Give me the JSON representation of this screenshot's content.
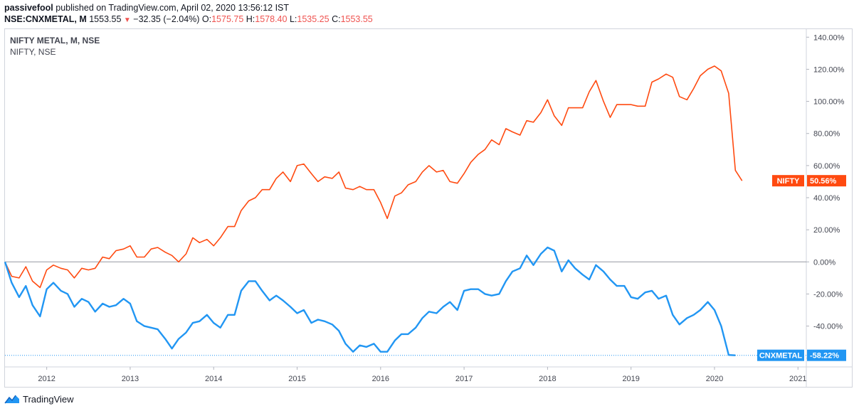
{
  "header": {
    "author": "passivefool",
    "published_text": "published on TradingView.com, April 02, 2020 13:56:12 IST",
    "symbol": "NSE:CNXMETAL, M",
    "last": "1553.55",
    "change": "−32.35 (−2.04%)",
    "o_label": "O:",
    "o_val": "1575.75",
    "h_label": "H:",
    "h_val": "1578.40",
    "l_label": "L:",
    "l_val": "1535.25",
    "c_label": "C:",
    "c_val": "1553.55"
  },
  "legend": {
    "main": "NIFTY METAL, M, NSE",
    "compare": "NIFTY, NSE"
  },
  "brand": "TradingView",
  "chart_data": {
    "type": "line",
    "y_unit": "%",
    "ylim": [
      -65,
      145
    ],
    "y_ticks": [
      "140.00%",
      "120.00%",
      "100.00%",
      "80.00%",
      "60.00%",
      "40.00%",
      "20.00%",
      "0.00%",
      "-20.00%",
      "-40.00%",
      "-60.00%"
    ],
    "y_tick_values": [
      140,
      120,
      100,
      80,
      60,
      40,
      20,
      0,
      -20,
      -40,
      -60
    ],
    "x_ticks": [
      "2012",
      "2013",
      "2014",
      "2015",
      "2016",
      "2017",
      "2018",
      "2019",
      "2020",
      "2021"
    ],
    "x_tick_values": [
      2012,
      2013,
      2014,
      2015,
      2016,
      2017,
      2018,
      2019,
      2020,
      2021
    ],
    "xlim": [
      2011.5,
      2021.1
    ],
    "colors": {
      "nifty": "#ff4a10",
      "metal": "#2196f3"
    },
    "series": [
      {
        "name": "NIFTY",
        "last_label": "NIFTY",
        "last_value_text": "50.56%",
        "points": [
          [
            2011.5,
            0
          ],
          [
            2011.58,
            -9
          ],
          [
            2011.67,
            -10
          ],
          [
            2011.75,
            -3
          ],
          [
            2011.83,
            -12
          ],
          [
            2011.92,
            -16
          ],
          [
            2012.0,
            -5
          ],
          [
            2012.08,
            -2
          ],
          [
            2012.17,
            -4
          ],
          [
            2012.25,
            -5
          ],
          [
            2012.33,
            -10
          ],
          [
            2012.42,
            -4
          ],
          [
            2012.5,
            -5
          ],
          [
            2012.58,
            -4
          ],
          [
            2012.67,
            3
          ],
          [
            2012.75,
            2
          ],
          [
            2012.83,
            7
          ],
          [
            2012.92,
            8
          ],
          [
            2013.0,
            10
          ],
          [
            2013.08,
            3
          ],
          [
            2013.17,
            3
          ],
          [
            2013.25,
            8
          ],
          [
            2013.33,
            9
          ],
          [
            2013.42,
            6
          ],
          [
            2013.5,
            4
          ],
          [
            2013.58,
            0
          ],
          [
            2013.67,
            5
          ],
          [
            2013.75,
            15
          ],
          [
            2013.83,
            12
          ],
          [
            2013.92,
            14
          ],
          [
            2014.0,
            10
          ],
          [
            2014.08,
            15
          ],
          [
            2014.17,
            22
          ],
          [
            2014.25,
            22
          ],
          [
            2014.33,
            32
          ],
          [
            2014.42,
            38
          ],
          [
            2014.5,
            40
          ],
          [
            2014.58,
            45
          ],
          [
            2014.67,
            45
          ],
          [
            2014.75,
            52
          ],
          [
            2014.83,
            56
          ],
          [
            2014.92,
            50
          ],
          [
            2015.0,
            60
          ],
          [
            2015.08,
            61
          ],
          [
            2015.17,
            55
          ],
          [
            2015.25,
            50
          ],
          [
            2015.33,
            53
          ],
          [
            2015.42,
            52
          ],
          [
            2015.5,
            56
          ],
          [
            2015.58,
            46
          ],
          [
            2015.67,
            45
          ],
          [
            2015.75,
            47
          ],
          [
            2015.83,
            45
          ],
          [
            2015.92,
            45
          ],
          [
            2016.0,
            37
          ],
          [
            2016.08,
            27
          ],
          [
            2016.17,
            41
          ],
          [
            2016.25,
            43
          ],
          [
            2016.33,
            48
          ],
          [
            2016.42,
            50
          ],
          [
            2016.5,
            56
          ],
          [
            2016.58,
            60
          ],
          [
            2016.67,
            56
          ],
          [
            2016.75,
            57
          ],
          [
            2016.83,
            50
          ],
          [
            2016.92,
            49
          ],
          [
            2017.0,
            55
          ],
          [
            2017.08,
            62
          ],
          [
            2017.17,
            67
          ],
          [
            2017.25,
            70
          ],
          [
            2017.33,
            76
          ],
          [
            2017.42,
            73
          ],
          [
            2017.5,
            83
          ],
          [
            2017.58,
            81
          ],
          [
            2017.67,
            79
          ],
          [
            2017.75,
            88
          ],
          [
            2017.83,
            87
          ],
          [
            2017.92,
            93
          ],
          [
            2018.0,
            101
          ],
          [
            2018.08,
            91
          ],
          [
            2018.17,
            85
          ],
          [
            2018.25,
            96
          ],
          [
            2018.33,
            96
          ],
          [
            2018.42,
            96
          ],
          [
            2018.5,
            106
          ],
          [
            2018.58,
            113
          ],
          [
            2018.67,
            100
          ],
          [
            2018.75,
            90
          ],
          [
            2018.83,
            98
          ],
          [
            2018.92,
            98
          ],
          [
            2019.0,
            98
          ],
          [
            2019.08,
            97
          ],
          [
            2019.17,
            97
          ],
          [
            2019.25,
            112
          ],
          [
            2019.33,
            114
          ],
          [
            2019.42,
            117
          ],
          [
            2019.5,
            115
          ],
          [
            2019.58,
            103
          ],
          [
            2019.67,
            101
          ],
          [
            2019.75,
            108
          ],
          [
            2019.83,
            116
          ],
          [
            2019.92,
            120
          ],
          [
            2020.0,
            122
          ],
          [
            2020.08,
            119
          ],
          [
            2020.17,
            105
          ],
          [
            2020.25,
            57
          ],
          [
            2020.33,
            50.56
          ]
        ]
      },
      {
        "name": "CNXMETAL",
        "last_label": "CNXMETAL",
        "last_value_text": "-58.22%",
        "points": [
          [
            2011.5,
            0
          ],
          [
            2011.58,
            -13
          ],
          [
            2011.67,
            -22
          ],
          [
            2011.75,
            -15
          ],
          [
            2011.83,
            -27
          ],
          [
            2011.92,
            -34
          ],
          [
            2012.0,
            -17
          ],
          [
            2012.08,
            -13
          ],
          [
            2012.17,
            -18
          ],
          [
            2012.25,
            -20
          ],
          [
            2012.33,
            -28
          ],
          [
            2012.42,
            -23
          ],
          [
            2012.5,
            -25
          ],
          [
            2012.58,
            -31
          ],
          [
            2012.67,
            -26
          ],
          [
            2012.75,
            -28
          ],
          [
            2012.83,
            -27
          ],
          [
            2012.92,
            -23
          ],
          [
            2013.0,
            -26
          ],
          [
            2013.08,
            -37
          ],
          [
            2013.17,
            -40
          ],
          [
            2013.25,
            -41
          ],
          [
            2013.33,
            -42
          ],
          [
            2013.42,
            -48
          ],
          [
            2013.5,
            -54
          ],
          [
            2013.58,
            -48
          ],
          [
            2013.67,
            -44
          ],
          [
            2013.75,
            -38
          ],
          [
            2013.83,
            -37
          ],
          [
            2013.92,
            -33
          ],
          [
            2014.0,
            -38
          ],
          [
            2014.08,
            -41
          ],
          [
            2014.17,
            -33
          ],
          [
            2014.25,
            -33
          ],
          [
            2014.33,
            -18
          ],
          [
            2014.42,
            -12
          ],
          [
            2014.5,
            -12
          ],
          [
            2014.58,
            -18
          ],
          [
            2014.67,
            -24
          ],
          [
            2014.75,
            -21
          ],
          [
            2014.83,
            -24
          ],
          [
            2014.92,
            -28
          ],
          [
            2015.0,
            -32
          ],
          [
            2015.08,
            -30
          ],
          [
            2015.17,
            -38
          ],
          [
            2015.25,
            -36
          ],
          [
            2015.33,
            -37
          ],
          [
            2015.42,
            -39
          ],
          [
            2015.5,
            -43
          ],
          [
            2015.58,
            -51
          ],
          [
            2015.67,
            -56
          ],
          [
            2015.75,
            -52
          ],
          [
            2015.83,
            -53
          ],
          [
            2015.92,
            -51
          ],
          [
            2016.0,
            -56
          ],
          [
            2016.08,
            -56
          ],
          [
            2016.17,
            -49
          ],
          [
            2016.25,
            -45
          ],
          [
            2016.33,
            -45
          ],
          [
            2016.42,
            -41
          ],
          [
            2016.5,
            -35
          ],
          [
            2016.58,
            -31
          ],
          [
            2016.67,
            -32
          ],
          [
            2016.75,
            -28
          ],
          [
            2016.83,
            -25
          ],
          [
            2016.92,
            -30
          ],
          [
            2017.0,
            -18
          ],
          [
            2017.08,
            -17
          ],
          [
            2017.17,
            -17
          ],
          [
            2017.25,
            -20
          ],
          [
            2017.33,
            -21
          ],
          [
            2017.42,
            -20
          ],
          [
            2017.5,
            -12
          ],
          [
            2017.58,
            -6
          ],
          [
            2017.67,
            -4
          ],
          [
            2017.75,
            4
          ],
          [
            2017.83,
            -2
          ],
          [
            2017.92,
            5
          ],
          [
            2018.0,
            9
          ],
          [
            2018.08,
            7
          ],
          [
            2018.17,
            -6
          ],
          [
            2018.25,
            1
          ],
          [
            2018.33,
            -4
          ],
          [
            2018.42,
            -8
          ],
          [
            2018.5,
            -11
          ],
          [
            2018.58,
            -2
          ],
          [
            2018.67,
            -6
          ],
          [
            2018.75,
            -11
          ],
          [
            2018.83,
            -15
          ],
          [
            2018.92,
            -15
          ],
          [
            2019.0,
            -22
          ],
          [
            2019.08,
            -23
          ],
          [
            2019.17,
            -19
          ],
          [
            2019.25,
            -18
          ],
          [
            2019.33,
            -23
          ],
          [
            2019.42,
            -21
          ],
          [
            2019.5,
            -33
          ],
          [
            2019.58,
            -39
          ],
          [
            2019.67,
            -35
          ],
          [
            2019.75,
            -33
          ],
          [
            2019.83,
            -30
          ],
          [
            2019.92,
            -25
          ],
          [
            2020.0,
            -30
          ],
          [
            2020.08,
            -40
          ],
          [
            2020.17,
            -58
          ],
          [
            2020.25,
            -58.22
          ]
        ]
      }
    ]
  }
}
